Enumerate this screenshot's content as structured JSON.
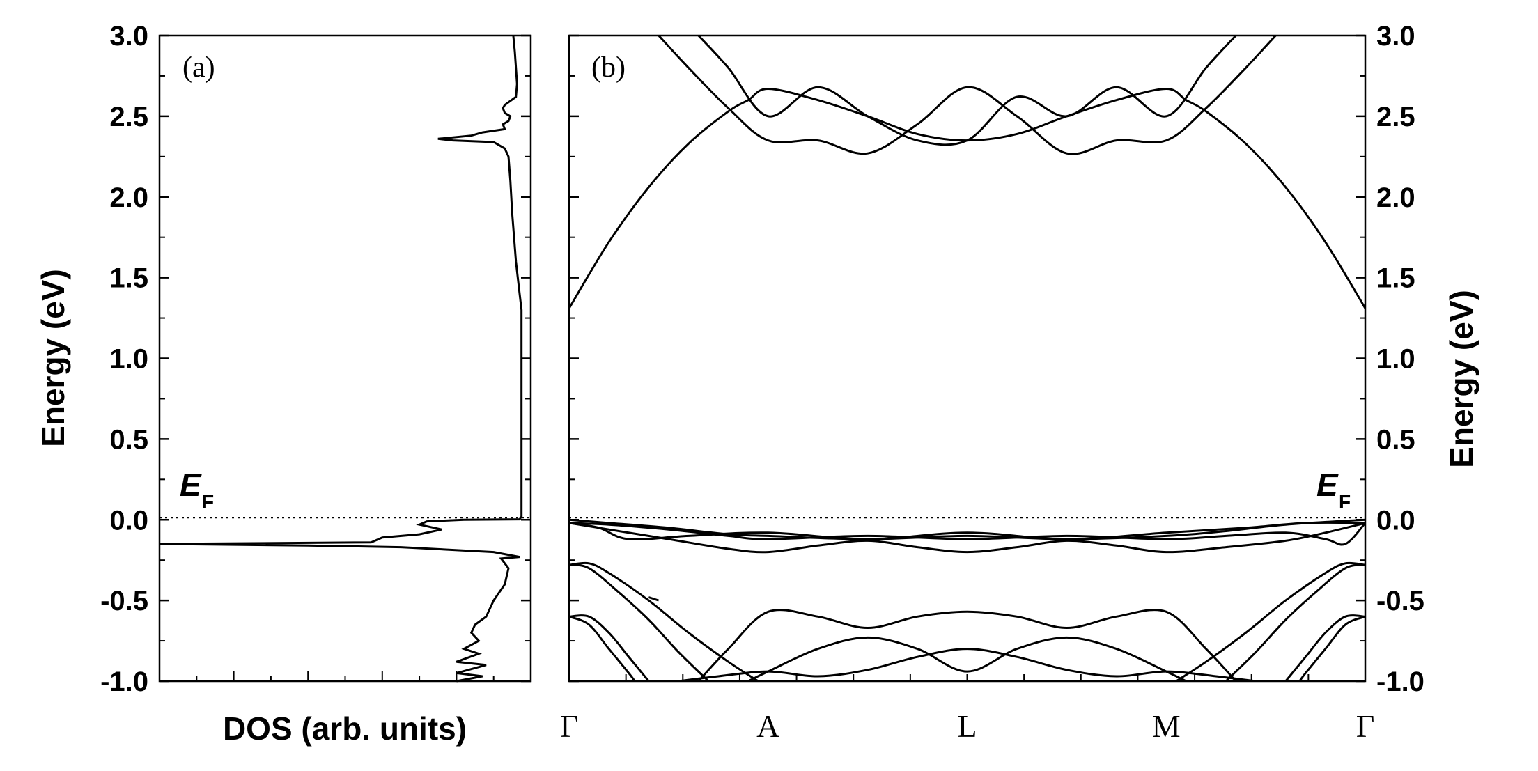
{
  "chart_data": [
    {
      "type": "line",
      "panel_label": "(a)",
      "xlabel": "DOS (arb. units)",
      "ylabel": "Energy (eV)",
      "ylim": [
        -1.0,
        3.0
      ],
      "xlim": [
        0,
        1
      ],
      "y_ticks": [
        "-1.0",
        "-0.5",
        "0.0",
        "0.5",
        "1.0",
        "1.5",
        "2.0",
        "2.5",
        "3.0"
      ],
      "fermi_level": 0.0,
      "fermi_label": {
        "main": "E",
        "sub": "F"
      },
      "grid": false,
      "series": [
        {
          "points": [
            [
              0.953,
              3.0
            ],
            [
              0.957,
              2.9
            ],
            [
              0.96,
              2.8
            ],
            [
              0.963,
              2.7
            ],
            [
              0.96,
              2.62
            ],
            [
              0.93,
              2.57
            ],
            [
              0.925,
              2.55
            ],
            [
              0.93,
              2.52
            ],
            [
              0.945,
              2.5
            ],
            [
              0.94,
              2.47
            ],
            [
              0.925,
              2.45
            ],
            [
              0.93,
              2.42
            ],
            [
              0.87,
              2.4
            ],
            [
              0.84,
              2.38
            ],
            [
              0.75,
              2.36
            ],
            [
              0.79,
              2.35
            ],
            [
              0.9,
              2.34
            ],
            [
              0.93,
              2.3
            ],
            [
              0.94,
              2.25
            ],
            [
              0.945,
              2.1
            ],
            [
              0.95,
              1.9
            ],
            [
              0.96,
              1.6
            ],
            [
              0.97,
              1.4
            ],
            [
              0.975,
              1.3
            ],
            [
              0.975,
              0.02
            ],
            [
              0.97,
              0.003
            ],
            [
              0.82,
              0.0
            ],
            [
              0.72,
              -0.01
            ],
            [
              0.7,
              -0.03
            ],
            [
              0.76,
              -0.06
            ],
            [
              0.7,
              -0.09
            ],
            [
              0.6,
              -0.11
            ],
            [
              0.57,
              -0.14
            ],
            [
              0.0,
              -0.15
            ],
            [
              0.4,
              -0.16
            ],
            [
              0.65,
              -0.17
            ],
            [
              0.9,
              -0.2
            ],
            [
              0.97,
              -0.23
            ],
            [
              0.92,
              -0.24
            ],
            [
              0.94,
              -0.3
            ],
            [
              0.93,
              -0.4
            ],
            [
              0.9,
              -0.5
            ],
            [
              0.88,
              -0.6
            ],
            [
              0.85,
              -0.65
            ],
            [
              0.84,
              -0.7
            ],
            [
              0.86,
              -0.75
            ],
            [
              0.82,
              -0.8
            ],
            [
              0.86,
              -0.83
            ],
            [
              0.8,
              -0.88
            ],
            [
              0.88,
              -0.9
            ],
            [
              0.8,
              -0.95
            ],
            [
              0.87,
              -0.97
            ],
            [
              0.8,
              -1.0
            ]
          ]
        }
      ]
    },
    {
      "type": "line",
      "panel_label": "(b)",
      "ylabel": "Energy (eV)",
      "ylim": [
        -1.0,
        3.0
      ],
      "xlim": [
        0,
        4
      ],
      "y_ticks": [
        "-1.0",
        "-0.5",
        "0.0",
        "0.5",
        "1.0",
        "1.5",
        "2.0",
        "2.5",
        "3.0"
      ],
      "k_points": [
        {
          "label": "Γ",
          "x": 0
        },
        {
          "label": "A",
          "x": 1
        },
        {
          "label": "L",
          "x": 2
        },
        {
          "label": "M",
          "x": 3
        },
        {
          "label": "Γ",
          "x": 4
        }
      ],
      "fermi_level": 0.0,
      "fermi_label": {
        "main": "E",
        "sub": "F"
      },
      "grid": false,
      "series": [
        {
          "points": [
            [
              0,
              1.31
            ],
            [
              0.2,
              1.72
            ],
            [
              0.4,
              2.06
            ],
            [
              0.6,
              2.33
            ],
            [
              0.8,
              2.53
            ],
            [
              0.9,
              2.6
            ],
            [
              1.0,
              2.67
            ],
            [
              1.25,
              2.6
            ],
            [
              1.5,
              2.5
            ],
            [
              1.75,
              2.39
            ],
            [
              2.0,
              2.35
            ],
            [
              2.25,
              2.39
            ],
            [
              2.5,
              2.5
            ],
            [
              2.75,
              2.6
            ],
            [
              3.0,
              2.67
            ],
            [
              3.1,
              2.6
            ],
            [
              3.2,
              2.53
            ],
            [
              3.4,
              2.33
            ],
            [
              3.6,
              2.06
            ],
            [
              3.8,
              1.72
            ],
            [
              4.0,
              1.31
            ]
          ]
        },
        {
          "points": [
            [
              0.45,
              3.0
            ],
            [
              0.6,
              2.8
            ],
            [
              0.8,
              2.55
            ],
            [
              1.0,
              2.35
            ],
            [
              1.25,
              2.35
            ],
            [
              1.5,
              2.27
            ],
            [
              1.75,
              2.45
            ],
            [
              2.0,
              2.68
            ],
            [
              2.25,
              2.5
            ],
            [
              2.5,
              2.27
            ],
            [
              2.75,
              2.35
            ],
            [
              3.0,
              2.35
            ],
            [
              3.2,
              2.55
            ],
            [
              3.4,
              2.8
            ],
            [
              3.55,
              3.0
            ]
          ]
        },
        {
          "points": [
            [
              0.65,
              3.0
            ],
            [
              0.8,
              2.8
            ],
            [
              1.0,
              2.5
            ],
            [
              1.25,
              2.68
            ],
            [
              1.5,
              2.5
            ],
            [
              1.75,
              2.35
            ],
            [
              2.0,
              2.35
            ],
            [
              2.25,
              2.62
            ],
            [
              2.5,
              2.5
            ],
            [
              2.75,
              2.68
            ],
            [
              3.0,
              2.5
            ],
            [
              3.2,
              2.8
            ],
            [
              3.35,
              3.0
            ]
          ]
        },
        {
          "points": [
            [
              0,
              0.0
            ],
            [
              0.2,
              -0.02
            ],
            [
              0.5,
              -0.05
            ],
            [
              0.8,
              -0.09
            ],
            [
              1.0,
              -0.1
            ],
            [
              1.5,
              -0.12
            ],
            [
              2.0,
              -0.1
            ],
            [
              2.5,
              -0.12
            ],
            [
              3.0,
              -0.1
            ],
            [
              3.3,
              -0.07
            ],
            [
              3.6,
              -0.03
            ],
            [
              4.0,
              0.0
            ]
          ]
        },
        {
          "points": [
            [
              0,
              -0.02
            ],
            [
              0.2,
              -0.06
            ],
            [
              0.5,
              -0.12
            ],
            [
              0.8,
              -0.18
            ],
            [
              1.0,
              -0.2
            ],
            [
              1.25,
              -0.16
            ],
            [
              1.5,
              -0.13
            ],
            [
              1.75,
              -0.17
            ],
            [
              2.0,
              -0.2
            ],
            [
              2.25,
              -0.17
            ],
            [
              2.5,
              -0.13
            ],
            [
              2.75,
              -0.16
            ],
            [
              3.0,
              -0.2
            ],
            [
              3.3,
              -0.17
            ],
            [
              3.6,
              -0.13
            ],
            [
              3.8,
              -0.08
            ],
            [
              4.0,
              -0.02
            ]
          ]
        },
        {
          "points": [
            [
              0,
              -0.02
            ],
            [
              0.2,
              -0.03
            ],
            [
              0.5,
              -0.06
            ],
            [
              0.8,
              -0.1
            ],
            [
              1.0,
              -0.12
            ],
            [
              1.5,
              -0.1
            ],
            [
              2.0,
              -0.12
            ],
            [
              2.5,
              -0.1
            ],
            [
              3.0,
              -0.12
            ],
            [
              3.3,
              -0.1
            ],
            [
              3.6,
              -0.08
            ],
            [
              3.8,
              -0.12
            ],
            [
              3.9,
              -0.15
            ],
            [
              4.0,
              -0.02
            ]
          ]
        },
        {
          "points": [
            [
              0,
              -0.02
            ],
            [
              0.15,
              -0.05
            ],
            [
              0.3,
              -0.12
            ],
            [
              0.6,
              -0.1
            ],
            [
              1.0,
              -0.08
            ],
            [
              1.5,
              -0.12
            ],
            [
              2.0,
              -0.08
            ],
            [
              2.5,
              -0.12
            ],
            [
              3.0,
              -0.08
            ],
            [
              3.4,
              -0.05
            ],
            [
              3.7,
              -0.02
            ],
            [
              4.0,
              -0.02
            ]
          ]
        },
        {
          "points": [
            [
              0,
              -0.28
            ],
            [
              0.1,
              -0.27
            ],
            [
              0.2,
              -0.33
            ],
            [
              0.4,
              -0.5
            ],
            [
              0.6,
              -0.7
            ],
            [
              0.8,
              -0.88
            ],
            [
              0.95,
              -1.0
            ]
          ]
        },
        {
          "points": [
            [
              0,
              -0.28
            ],
            [
              0.1,
              -0.3
            ],
            [
              0.25,
              -0.45
            ],
            [
              0.4,
              -0.62
            ],
            [
              0.55,
              -0.82
            ],
            [
              0.7,
              -1.0
            ]
          ]
        },
        {
          "points": [
            [
              0,
              -0.6
            ],
            [
              0.1,
              -0.6
            ],
            [
              0.2,
              -0.7
            ],
            [
              0.3,
              -0.85
            ],
            [
              0.4,
              -1.0
            ]
          ]
        },
        {
          "points": [
            [
              0,
              -0.6
            ],
            [
              0.1,
              -0.65
            ],
            [
              0.2,
              -0.8
            ],
            [
              0.3,
              -0.95
            ],
            [
              0.33,
              -1.0
            ]
          ]
        },
        {
          "points": [
            [
              0.65,
              -1.0
            ],
            [
              0.8,
              -0.8
            ],
            [
              1.0,
              -0.57
            ],
            [
              1.25,
              -0.6
            ],
            [
              1.5,
              -0.67
            ],
            [
              1.75,
              -0.6
            ],
            [
              2.0,
              -0.57
            ],
            [
              2.25,
              -0.6
            ],
            [
              2.5,
              -0.67
            ],
            [
              2.75,
              -0.6
            ],
            [
              3.0,
              -0.57
            ],
            [
              3.2,
              -0.8
            ],
            [
              3.35,
              -1.0
            ]
          ]
        },
        {
          "points": [
            [
              0.9,
              -1.0
            ],
            [
              1.0,
              -0.94
            ],
            [
              1.25,
              -0.8
            ],
            [
              1.5,
              -0.73
            ],
            [
              1.75,
              -0.8
            ],
            [
              2.0,
              -0.94
            ],
            [
              2.25,
              -0.8
            ],
            [
              2.5,
              -0.73
            ],
            [
              2.75,
              -0.8
            ],
            [
              3.0,
              -0.94
            ],
            [
              3.1,
              -1.0
            ]
          ]
        },
        {
          "points": [
            [
              0.55,
              -1.0
            ],
            [
              0.75,
              -0.97
            ],
            [
              1.0,
              -0.94
            ],
            [
              1.25,
              -0.97
            ],
            [
              1.5,
              -0.93
            ],
            [
              1.75,
              -0.85
            ],
            [
              2.0,
              -0.8
            ],
            [
              2.25,
              -0.85
            ],
            [
              2.5,
              -0.93
            ],
            [
              2.75,
              -0.97
            ],
            [
              3.0,
              -0.94
            ],
            [
              3.25,
              -0.97
            ],
            [
              3.45,
              -1.0
            ]
          ]
        },
        {
          "points": [
            [
              0.4,
              -0.48
            ],
            [
              0.45,
              -0.5
            ]
          ]
        },
        {
          "points": [
            [
              4.0,
              -0.28
            ],
            [
              3.9,
              -0.27
            ],
            [
              3.8,
              -0.33
            ],
            [
              3.6,
              -0.5
            ],
            [
              3.4,
              -0.7
            ],
            [
              3.2,
              -0.88
            ],
            [
              3.05,
              -1.0
            ]
          ]
        },
        {
          "points": [
            [
              4.0,
              -0.28
            ],
            [
              3.9,
              -0.3
            ],
            [
              3.75,
              -0.45
            ],
            [
              3.6,
              -0.62
            ],
            [
              3.45,
              -0.82
            ],
            [
              3.3,
              -1.0
            ]
          ]
        },
        {
          "points": [
            [
              4.0,
              -0.6
            ],
            [
              3.9,
              -0.6
            ],
            [
              3.8,
              -0.7
            ],
            [
              3.7,
              -0.85
            ],
            [
              3.6,
              -1.0
            ]
          ]
        },
        {
          "points": [
            [
              4.0,
              -0.6
            ],
            [
              3.9,
              -0.65
            ],
            [
              3.8,
              -0.8
            ],
            [
              3.7,
              -0.95
            ],
            [
              3.67,
              -1.0
            ]
          ]
        }
      ]
    }
  ]
}
